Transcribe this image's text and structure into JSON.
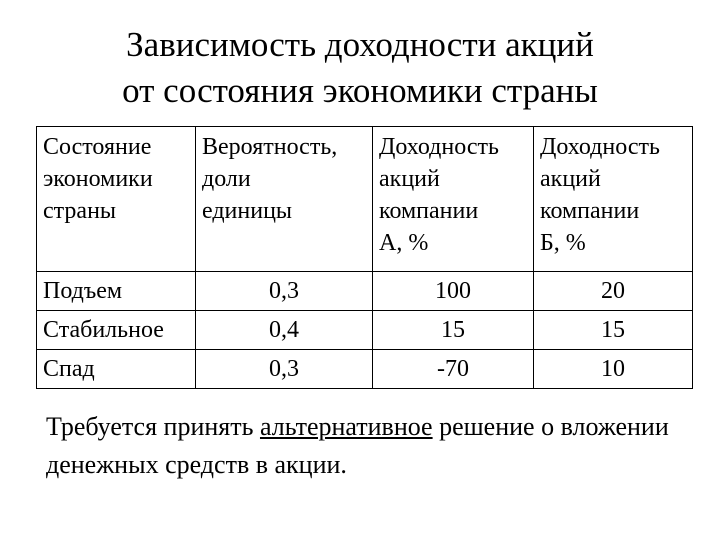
{
  "title": {
    "line1": "Зависимость доходности акций",
    "line2": "от состояния экономики страны"
  },
  "table": {
    "headers": [
      [
        "Состояние",
        "экономики",
        "страны"
      ],
      [
        "Вероятность,",
        "доли",
        "единицы"
      ],
      [
        "Доходность",
        "акций",
        "компании",
        "А, %"
      ],
      [
        "Доходность",
        "акций",
        "компании",
        "Б, %"
      ]
    ],
    "rows": [
      [
        "Подъем",
        "0,3",
        "100",
        "20"
      ],
      [
        "Стабильное",
        "0,4",
        "15",
        "15"
      ],
      [
        "Спад",
        "0,3",
        "-70",
        "10"
      ]
    ]
  },
  "note": {
    "before": "Требуется принять ",
    "underlined": "альтернативное",
    "after": " решение о вложении денежных средств в акции."
  }
}
